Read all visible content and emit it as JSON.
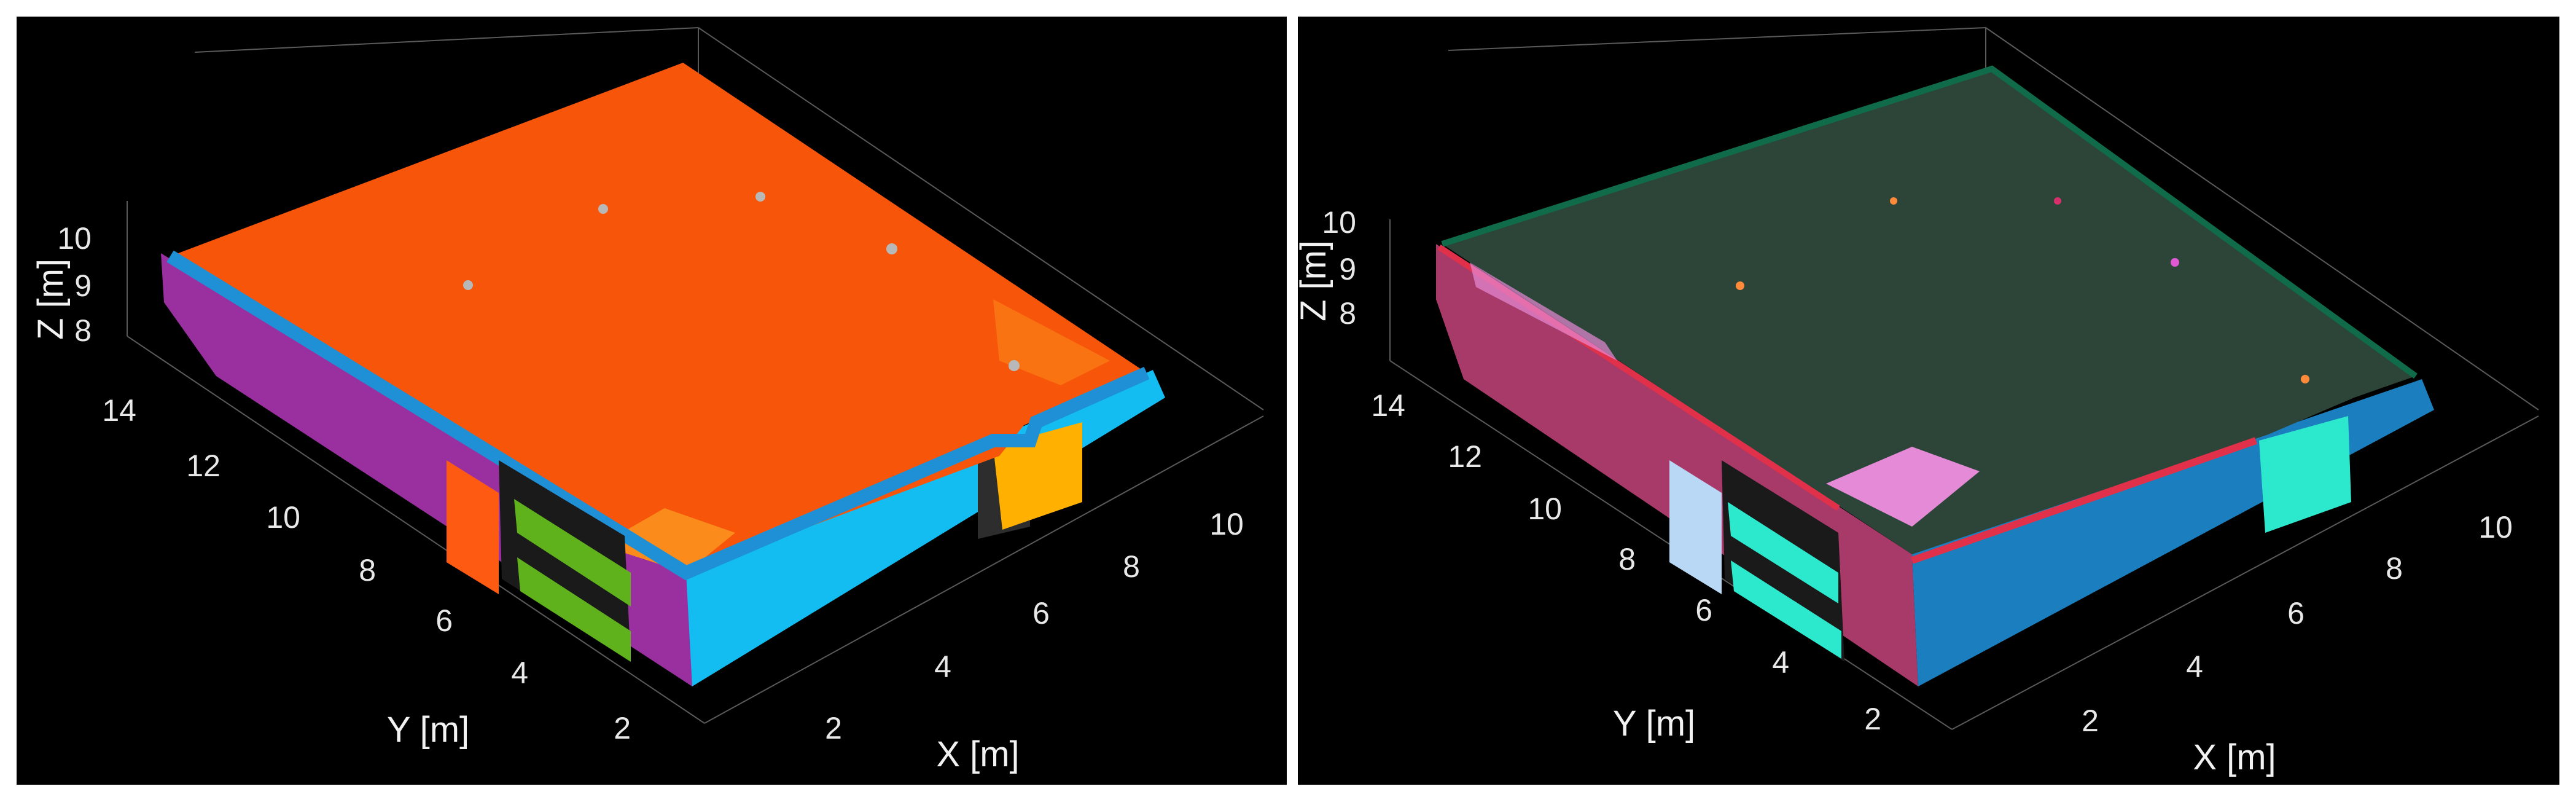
{
  "panels": {
    "left": {
      "axes": {
        "x_label": "X [m]",
        "y_label": "Y [m]",
        "z_label": "Z [m]",
        "x_ticks": [
          "2",
          "4",
          "6",
          "8",
          "10"
        ],
        "y_ticks": [
          "2",
          "4",
          "6",
          "8",
          "10",
          "12",
          "14"
        ],
        "z_ticks": [
          "8",
          "9",
          "10"
        ]
      },
      "colors": {
        "ceiling": "#f7560a",
        "ceiling_light": "#fb8c1c",
        "wall_left": "#9a2fa0",
        "wall_front": "#13bdf2",
        "rim": "#1f8fd6",
        "door": "#ff5a12",
        "window": "#5fb21c",
        "box": "#ffb000"
      }
    },
    "right": {
      "axes": {
        "x_label": "X [m]",
        "y_label": "Y [m]",
        "z_label": "Z [m]",
        "x_ticks": [
          "2",
          "4",
          "6",
          "8",
          "10"
        ],
        "y_ticks": [
          "2",
          "4",
          "6",
          "8",
          "10",
          "12",
          "14"
        ],
        "z_ticks": [
          "8",
          "9",
          "10"
        ]
      },
      "colors": {
        "ceiling": "#2c4538",
        "ceiling_edge": "#0f6b4a",
        "wall_left": "#a83a6a",
        "wall_front": "#1b7fbf",
        "door": "#b9d8f5",
        "window": "#2ce8cc",
        "pink": "#e58ad6",
        "red_strip": "#e0304a"
      }
    }
  }
}
